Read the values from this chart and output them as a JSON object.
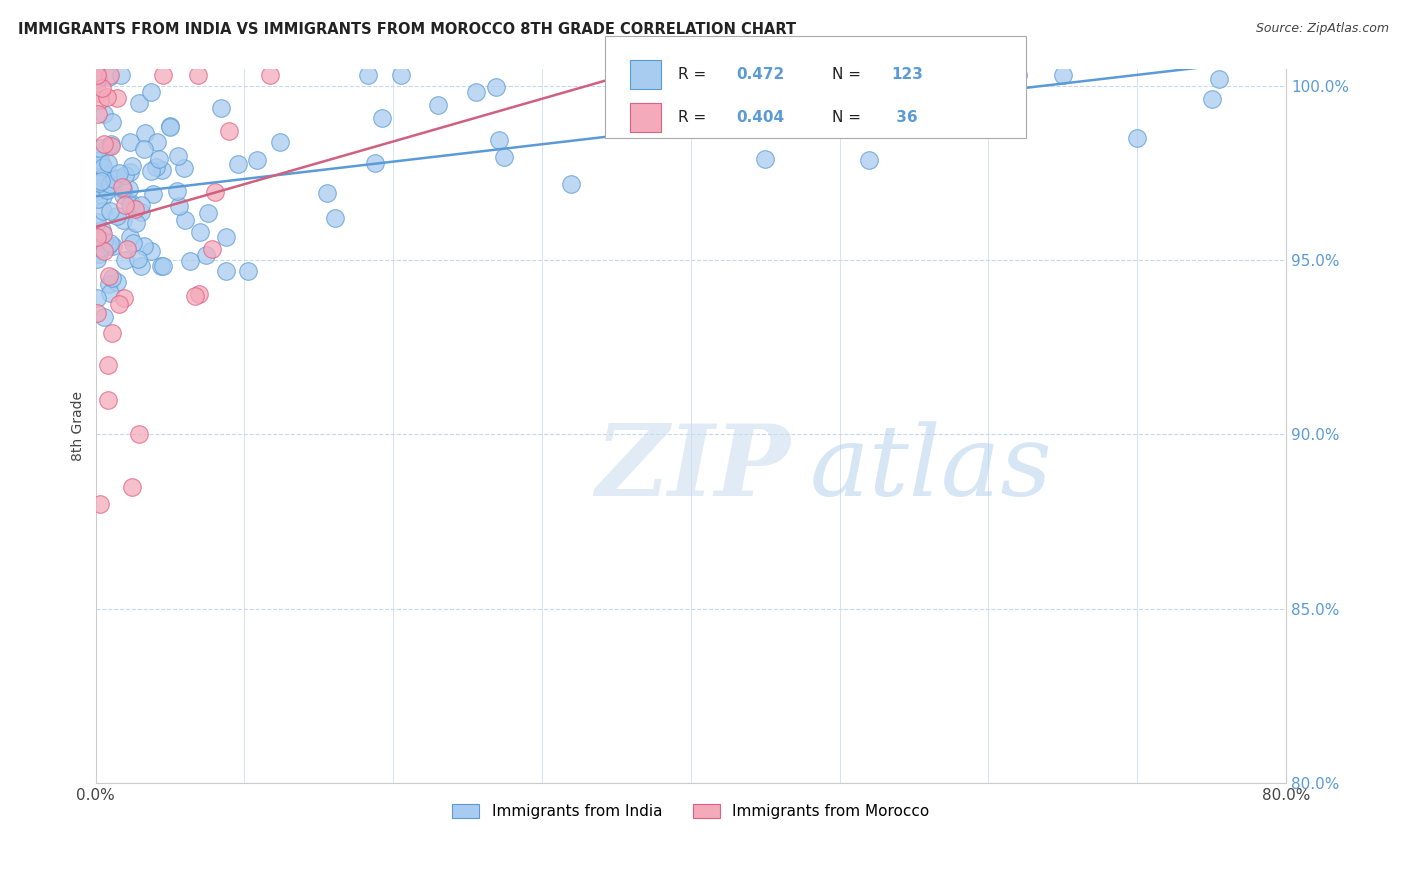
{
  "title": "IMMIGRANTS FROM INDIA VS IMMIGRANTS FROM MOROCCO 8TH GRADE CORRELATION CHART",
  "source": "Source: ZipAtlas.com",
  "ylabel": "8th Grade",
  "x_min": 0.0,
  "x_max": 0.8,
  "y_min": 0.8,
  "y_max": 1.005,
  "y_ticks": [
    0.8,
    0.85,
    0.9,
    0.95,
    1.0
  ],
  "y_tick_labels": [
    "80.0%",
    "85.0%",
    "90.0%",
    "95.0%",
    "100.0%"
  ],
  "x_ticks": [
    0.0,
    0.1,
    0.2,
    0.3,
    0.4,
    0.5,
    0.6,
    0.7,
    0.8
  ],
  "x_tick_labels": [
    "0.0%",
    "",
    "",
    "",
    "",
    "",
    "",
    "",
    "80.0%"
  ],
  "india_color": "#A8CCF0",
  "morocco_color": "#F4AABB",
  "india_edge_color": "#5B9BD5",
  "morocco_edge_color": "#E06080",
  "india_line_color": "#5B9BD5",
  "morocco_line_color": "#D06080",
  "india_R": 0.472,
  "india_N": 123,
  "morocco_R": 0.404,
  "morocco_N": 36,
  "grid_color": "#C8D8EC",
  "legend_label_india": "Immigrants from India",
  "legend_label_morocco": "Immigrants from Morocco",
  "right_tick_color": "#5B9BD5",
  "title_color": "#222222",
  "source_color": "#444444"
}
